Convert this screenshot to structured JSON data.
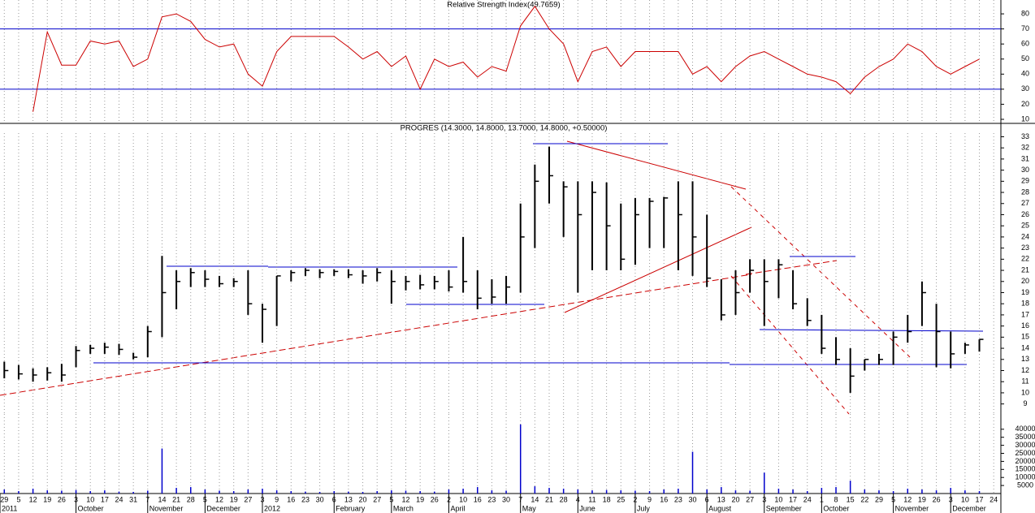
{
  "chart_data": [
    {
      "type": "line",
      "title": "Relative Strength Index(49.7659)",
      "color": "#cc0000",
      "level_color": "#0000cc",
      "x": [
        0,
        1,
        2,
        3,
        4,
        5,
        6,
        7,
        8,
        9,
        10,
        11,
        12,
        13,
        14,
        15,
        16,
        17,
        18,
        19,
        20,
        21,
        22,
        23,
        24,
        25,
        26,
        27,
        28,
        29,
        30,
        31,
        32,
        33,
        34,
        35,
        36,
        37,
        38,
        39,
        40,
        41,
        42,
        43,
        44,
        45,
        46,
        47,
        48,
        49,
        50,
        51,
        52,
        53,
        54,
        55,
        56,
        57,
        58,
        59,
        60,
        61,
        62,
        63,
        64,
        65,
        66,
        67,
        68
      ],
      "values": [
        null,
        null,
        15,
        68,
        46,
        46,
        62,
        60,
        62,
        45,
        50,
        78,
        80,
        75,
        63,
        58,
        60,
        40,
        32,
        55,
        65,
        65,
        65,
        65,
        58,
        50,
        55,
        45,
        52,
        30,
        50,
        45,
        48,
        38,
        45,
        42,
        72,
        85,
        70,
        60,
        35,
        55,
        58,
        45,
        55,
        55,
        55,
        55,
        40,
        45,
        35,
        45,
        52,
        55,
        50,
        45,
        40,
        38,
        35,
        27,
        38,
        45,
        50,
        60,
        55,
        45,
        40,
        45,
        50
      ],
      "levels": [
        30,
        70
      ],
      "xlim": [
        -0.3,
        69.5
      ],
      "ylim": [
        7.3,
        89.2
      ],
      "yticks": [
        10,
        20,
        30,
        40,
        50,
        60,
        70,
        80
      ]
    },
    {
      "type": "ohlc",
      "title": "PROGRES (14.3000, 14.8000, 13.7000, 14.8000, +0.50000)",
      "color": "#000000",
      "x": [
        0,
        1,
        2,
        3,
        4,
        5,
        6,
        7,
        8,
        9,
        10,
        11,
        12,
        13,
        14,
        15,
        16,
        17,
        18,
        19,
        20,
        21,
        22,
        23,
        24,
        25,
        26,
        27,
        28,
        29,
        30,
        31,
        32,
        33,
        34,
        35,
        36,
        37,
        38,
        39,
        40,
        41,
        42,
        43,
        44,
        45,
        46,
        47,
        48,
        49,
        50,
        51,
        52,
        53,
        54,
        55,
        56,
        57,
        58,
        59,
        60,
        61,
        62,
        63,
        64,
        65,
        66,
        67,
        68
      ],
      "high": [
        12.8,
        12.5,
        12.2,
        12.3,
        12.6,
        14.2,
        14.3,
        14.5,
        14.4,
        13.6,
        16,
        22.3,
        21,
        21.2,
        21,
        20.5,
        20.3,
        21,
        18,
        20.5,
        21,
        21.2,
        21.1,
        21.1,
        21.1,
        21,
        21.2,
        21,
        20.5,
        20.6,
        20.5,
        21,
        24,
        21,
        20.2,
        20.5,
        27,
        30.5,
        32.1,
        29,
        29,
        29,
        28.9,
        27,
        27.5,
        27.5,
        27.6,
        29,
        29,
        26,
        20.2,
        21,
        22,
        22,
        22,
        21,
        18.5,
        17,
        15,
        14,
        13,
        13.5,
        15.5,
        17,
        20,
        18,
        15.5,
        14.5,
        14.8
      ],
      "low": [
        11.3,
        11.2,
        11,
        11.1,
        11,
        12.3,
        13.5,
        13.5,
        13.4,
        13,
        13.2,
        15,
        17.5,
        19.5,
        19.5,
        19.5,
        19.5,
        17,
        14.5,
        16,
        20,
        20.5,
        20.3,
        20.5,
        20.3,
        19.8,
        20,
        18,
        19.2,
        19.3,
        19.3,
        19.1,
        19,
        17.5,
        18,
        18,
        19,
        23,
        27,
        24,
        19,
        21,
        21,
        21,
        21.5,
        23,
        23,
        21,
        20.5,
        19.5,
        16.5,
        17,
        19,
        16,
        18.5,
        17.5,
        16,
        13.5,
        12.5,
        10,
        12,
        12.5,
        12.5,
        14.5,
        16,
        12.3,
        12.2,
        13.5,
        13.7
      ],
      "close": [
        12,
        11.7,
        11.6,
        11.8,
        11.6,
        13.8,
        14,
        14.1,
        13.9,
        13.2,
        15.5,
        19,
        20,
        20.8,
        20.2,
        19.8,
        20,
        18,
        17.5,
        20.5,
        20.8,
        21,
        20.8,
        20.9,
        20.6,
        20.5,
        20.8,
        20,
        20,
        19.7,
        20,
        19.5,
        20,
        18.5,
        18.6,
        19.5,
        24,
        29,
        29.5,
        28.5,
        26,
        28,
        25,
        22,
        26,
        27.2,
        27.5,
        26,
        24,
        20.3,
        17,
        19,
        21,
        20,
        21.5,
        18,
        16.5,
        14,
        13,
        11.5,
        13,
        13,
        15,
        15.5,
        19,
        15.5,
        13.5,
        14.3,
        14.8
      ],
      "xlim": [
        -0.3,
        69.5
      ],
      "ylim": [
        8.1,
        34.2
      ],
      "yticks": [
        9,
        10,
        11,
        12,
        13,
        14,
        15,
        16,
        17,
        18,
        19,
        20,
        21,
        22,
        23,
        24,
        25,
        26,
        27,
        28,
        29,
        30,
        31,
        32,
        33
      ]
    },
    {
      "type": "bar",
      "color": "#0000cc",
      "x": [
        0,
        1,
        2,
        3,
        4,
        5,
        6,
        7,
        8,
        9,
        10,
        11,
        12,
        13,
        14,
        15,
        16,
        17,
        18,
        19,
        20,
        21,
        22,
        23,
        24,
        25,
        26,
        27,
        28,
        29,
        30,
        31,
        32,
        33,
        34,
        35,
        36,
        37,
        38,
        39,
        40,
        41,
        42,
        43,
        44,
        45,
        46,
        47,
        48,
        49,
        50,
        51,
        52,
        53,
        54,
        55,
        56,
        57,
        58,
        59,
        60,
        61,
        62,
        63,
        64,
        65,
        66,
        67,
        68
      ],
      "values": [
        2500,
        1500,
        3000,
        2000,
        1800,
        2200,
        1500,
        2000,
        1200,
        1000,
        1800,
        28000,
        3500,
        4000,
        2500,
        1800,
        1500,
        2500,
        3000,
        2000,
        1500,
        1200,
        1000,
        1500,
        1200,
        1000,
        1500,
        2000,
        1800,
        1500,
        1200,
        2500,
        3000,
        4000,
        2000,
        1800,
        43000,
        4500,
        3500,
        3000,
        2500,
        2000,
        2200,
        2000,
        1800,
        1500,
        2500,
        3000,
        26000,
        2500,
        4000,
        2000,
        1800,
        13000,
        3000,
        2500,
        1500,
        3500,
        4000,
        8000,
        2500,
        2000,
        1500,
        3000,
        2500,
        2000,
        3500,
        2000,
        1500
      ],
      "xlim": [
        -0.3,
        69.5
      ],
      "ylim": [
        0,
        49500
      ],
      "yticks": [
        5000,
        10000,
        15000,
        20000,
        25000,
        30000,
        35000,
        40000
      ],
      "xticks": [
        {
          "value": 0,
          "label": "29"
        },
        {
          "value": 1,
          "label": "5"
        },
        {
          "value": 2,
          "label": "12"
        },
        {
          "value": 3,
          "label": "19"
        },
        {
          "value": 4,
          "label": "26"
        },
        {
          "value": 5,
          "label": "3"
        },
        {
          "value": 6,
          "label": "10"
        },
        {
          "value": 7,
          "label": "17"
        },
        {
          "value": 8,
          "label": "24"
        },
        {
          "value": 9,
          "label": "31"
        },
        {
          "value": 10,
          "label": "7"
        },
        {
          "value": 11,
          "label": "14"
        },
        {
          "value": 12,
          "label": "21"
        },
        {
          "value": 13,
          "label": "28"
        },
        {
          "value": 14,
          "label": "5"
        },
        {
          "value": 15,
          "label": "12"
        },
        {
          "value": 16,
          "label": "19"
        },
        {
          "value": 17,
          "label": "27"
        },
        {
          "value": 18,
          "label": "3"
        },
        {
          "value": 19,
          "label": "9"
        },
        {
          "value": 20,
          "label": "16"
        },
        {
          "value": 21,
          "label": "23"
        },
        {
          "value": 22,
          "label": "30"
        },
        {
          "value": 23,
          "label": "6"
        },
        {
          "value": 24,
          "label": "13"
        },
        {
          "value": 25,
          "label": "20"
        },
        {
          "value": 26,
          "label": "27"
        },
        {
          "value": 27,
          "label": "5"
        },
        {
          "value": 28,
          "label": "12"
        },
        {
          "value": 29,
          "label": "19"
        },
        {
          "value": 30,
          "label": "26"
        },
        {
          "value": 31,
          "label": "2"
        },
        {
          "value": 32,
          "label": "10"
        },
        {
          "value": 33,
          "label": "16"
        },
        {
          "value": 34,
          "label": "23"
        },
        {
          "value": 35,
          "label": "30"
        },
        {
          "value": 36,
          "label": "7"
        },
        {
          "value": 37,
          "label": "14"
        },
        {
          "value": 38,
          "label": "21"
        },
        {
          "value": 39,
          "label": "28"
        },
        {
          "value": 40,
          "label": "4"
        },
        {
          "value": 41,
          "label": "11"
        },
        {
          "value": 42,
          "label": "18"
        },
        {
          "value": 43,
          "label": "25"
        },
        {
          "value": 44,
          "label": "2"
        },
        {
          "value": 45,
          "label": "9"
        },
        {
          "value": 46,
          "label": "16"
        },
        {
          "value": 47,
          "label": "23"
        },
        {
          "value": 48,
          "label": "30"
        },
        {
          "value": 49,
          "label": "6"
        },
        {
          "value": 50,
          "label": "13"
        },
        {
          "value": 51,
          "label": "20"
        },
        {
          "value": 52,
          "label": "27"
        },
        {
          "value": 53,
          "label": "3"
        },
        {
          "value": 54,
          "label": "10"
        },
        {
          "value": 55,
          "label": "17"
        },
        {
          "value": 56,
          "label": "24"
        },
        {
          "value": 57,
          "label": "1"
        },
        {
          "value": 58,
          "label": "8"
        },
        {
          "value": 59,
          "label": "15"
        },
        {
          "value": 60,
          "label": "22"
        },
        {
          "value": 61,
          "label": "29"
        },
        {
          "value": 62,
          "label": "5"
        },
        {
          "value": 63,
          "label": "12"
        },
        {
          "value": 64,
          "label": "19"
        },
        {
          "value": 65,
          "label": "26"
        },
        {
          "value": 66,
          "label": "3"
        },
        {
          "value": 67,
          "label": "10"
        },
        {
          "value": 68,
          "label": "17"
        },
        {
          "value": 69,
          "label": "24"
        }
      ],
      "month_labels": [
        {
          "value": -0.3,
          "label": "2011"
        },
        {
          "value": 5,
          "label": "October"
        },
        {
          "value": 10,
          "label": "November"
        },
        {
          "value": 14,
          "label": "December"
        },
        {
          "value": 18,
          "label": "2012"
        },
        {
          "value": 23,
          "label": "February"
        },
        {
          "value": 27,
          "label": "March"
        },
        {
          "value": 31,
          "label": "April"
        },
        {
          "value": 36,
          "label": "May"
        },
        {
          "value": 40,
          "label": "June"
        },
        {
          "value": 44,
          "label": "July"
        },
        {
          "value": 49,
          "label": "August"
        },
        {
          "value": 53,
          "label": "September"
        },
        {
          "value": 57,
          "label": "October"
        },
        {
          "value": 62,
          "label": "November"
        },
        {
          "value": 66,
          "label": "December"
        }
      ]
    }
  ]
}
